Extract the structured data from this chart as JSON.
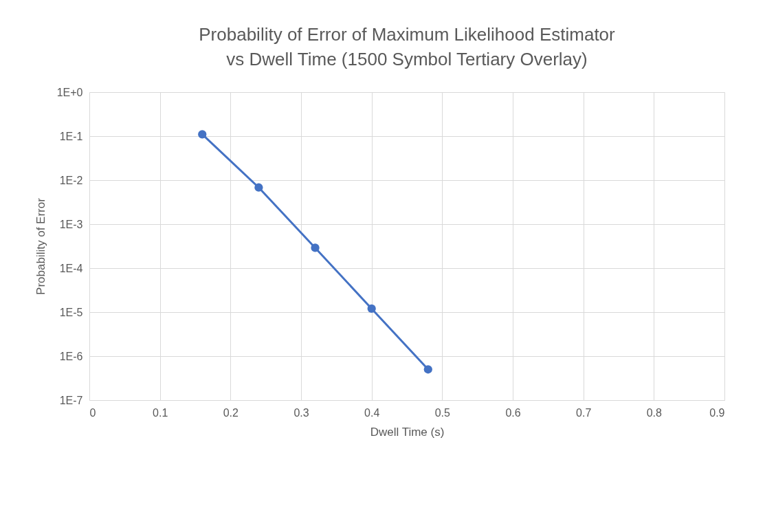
{
  "chart_data": {
    "type": "line",
    "title": "Probability of Error of Maximum Likelihood Estimator vs Dwell Time (1500 Symbol Tertiary Overlay)",
    "xlabel": "Dwell Time (s)",
    "ylabel": "Probability of Error",
    "x": [
      0.16,
      0.24,
      0.32,
      0.4,
      0.48
    ],
    "series": [
      {
        "color": "#4472c4",
        "values": [
          0.11,
          0.0068,
          0.00029,
          1.2e-05,
          5e-07
        ]
      }
    ],
    "log": "y",
    "xlim": [
      0,
      0.9
    ],
    "xticks": [
      0,
      0.1,
      0.2,
      0.3,
      0.4,
      0.5,
      0.6,
      0.7,
      0.8,
      0.9
    ],
    "ylim": [
      1e-07,
      1
    ],
    "yticks": [
      {
        "value": 1,
        "label": "1E+0"
      },
      {
        "value": 0.1,
        "label": "1E-1"
      },
      {
        "value": 0.01,
        "label": "1E-2"
      },
      {
        "value": 0.001,
        "label": "1E-3"
      },
      {
        "value": 0.0001,
        "label": "1E-4"
      },
      {
        "value": 1e-05,
        "label": "1E-5"
      },
      {
        "value": 1e-06,
        "label": "1E-6"
      },
      {
        "value": 1e-07,
        "label": "1E-7"
      }
    ],
    "grid": true,
    "marker": "circle",
    "line_style": "solid"
  }
}
